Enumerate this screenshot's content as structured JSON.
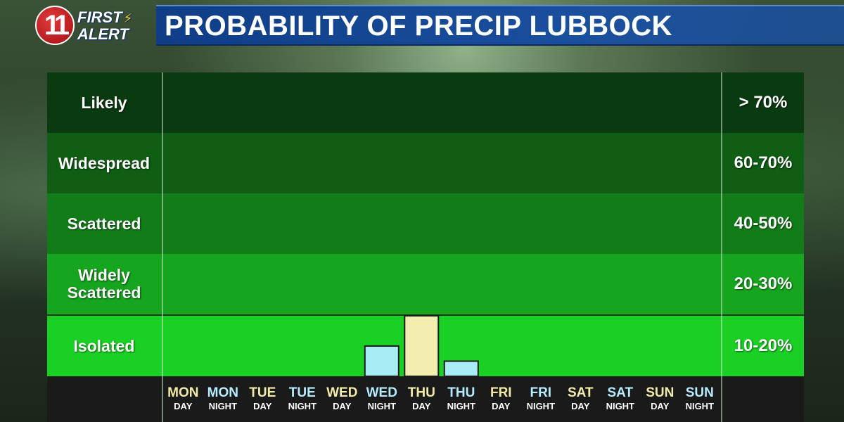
{
  "header": {
    "logo_number": "11",
    "logo_first": "FIRST",
    "logo_alert": "ALERT",
    "title": "PROBABILITY OF PRECIP LUBBOCK"
  },
  "colors": {
    "band_likely": "#0a3a0f",
    "band_widespread": "#0f5e14",
    "band_scattered": "#127d18",
    "band_widely_scattered": "#16a51e",
    "band_isolated": "#1bd024",
    "bar_night": "#a8ecf6",
    "bar_day": "#f1eeb0",
    "label_day": "#f3eba8",
    "label_night": "#b6ecff"
  },
  "chart_data": {
    "type": "bar",
    "title": "PROBABILITY OF PRECIP LUBBOCK",
    "categories": [
      {
        "day": "MON",
        "period": "DAY"
      },
      {
        "day": "MON",
        "period": "NIGHT"
      },
      {
        "day": "TUE",
        "period": "DAY"
      },
      {
        "day": "TUE",
        "period": "NIGHT"
      },
      {
        "day": "WED",
        "period": "DAY"
      },
      {
        "day": "WED",
        "period": "NIGHT"
      },
      {
        "day": "THU",
        "period": "DAY"
      },
      {
        "day": "THU",
        "period": "NIGHT"
      },
      {
        "day": "FRI",
        "period": "DAY"
      },
      {
        "day": "FRI",
        "period": "NIGHT"
      },
      {
        "day": "SAT",
        "period": "DAY"
      },
      {
        "day": "SAT",
        "period": "NIGHT"
      },
      {
        "day": "SUN",
        "period": "DAY"
      },
      {
        "day": "SUN",
        "period": "NIGHT"
      }
    ],
    "values": [
      0,
      0,
      0,
      0,
      0,
      10,
      20,
      5,
      0,
      0,
      0,
      0,
      0,
      0
    ],
    "ylim": [
      0,
      100
    ],
    "bands": [
      {
        "label": "Likely",
        "range": "> 70%",
        "from": 80,
        "to": 100
      },
      {
        "label": "Widespread",
        "range": "60-70%",
        "from": 60,
        "to": 80
      },
      {
        "label": "Scattered",
        "range": "40-50%",
        "from": 40,
        "to": 60
      },
      {
        "label": "Widely Scattered",
        "range": "20-30%",
        "from": 20,
        "to": 40
      },
      {
        "label": "Isolated",
        "range": "10-20%",
        "from": 0,
        "to": 20
      }
    ]
  }
}
